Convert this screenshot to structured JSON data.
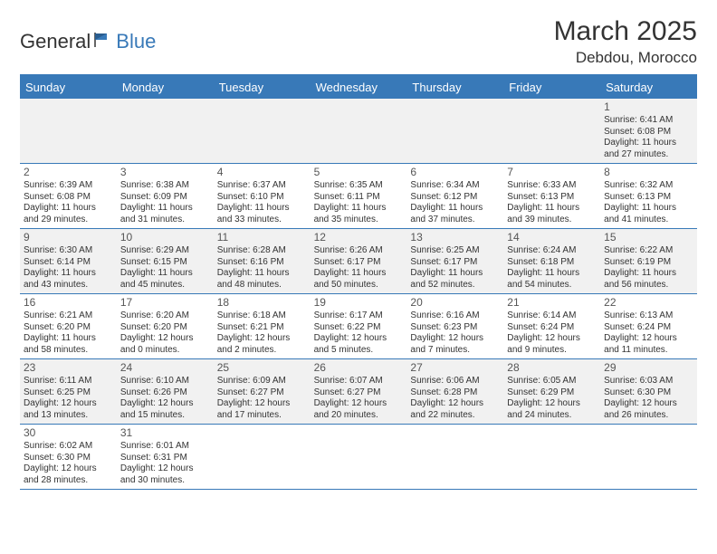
{
  "brand": {
    "part1": "General",
    "part2": "Blue"
  },
  "title": {
    "month_year": "March 2025",
    "location": "Debdou, Morocco"
  },
  "colors": {
    "accent": "#3879b8",
    "header_text": "#ffffff",
    "body_text": "#333333",
    "stripe_bg": "#f1f1f1",
    "background": "#ffffff"
  },
  "weekdays": [
    "Sunday",
    "Monday",
    "Tuesday",
    "Wednesday",
    "Thursday",
    "Friday",
    "Saturday"
  ],
  "weeks": [
    [
      null,
      null,
      null,
      null,
      null,
      null,
      {
        "n": "1",
        "sr": "Sunrise: 6:41 AM",
        "ss": "Sunset: 6:08 PM",
        "d1": "Daylight: 11 hours",
        "d2": "and 27 minutes."
      }
    ],
    [
      {
        "n": "2",
        "sr": "Sunrise: 6:39 AM",
        "ss": "Sunset: 6:08 PM",
        "d1": "Daylight: 11 hours",
        "d2": "and 29 minutes."
      },
      {
        "n": "3",
        "sr": "Sunrise: 6:38 AM",
        "ss": "Sunset: 6:09 PM",
        "d1": "Daylight: 11 hours",
        "d2": "and 31 minutes."
      },
      {
        "n": "4",
        "sr": "Sunrise: 6:37 AM",
        "ss": "Sunset: 6:10 PM",
        "d1": "Daylight: 11 hours",
        "d2": "and 33 minutes."
      },
      {
        "n": "5",
        "sr": "Sunrise: 6:35 AM",
        "ss": "Sunset: 6:11 PM",
        "d1": "Daylight: 11 hours",
        "d2": "and 35 minutes."
      },
      {
        "n": "6",
        "sr": "Sunrise: 6:34 AM",
        "ss": "Sunset: 6:12 PM",
        "d1": "Daylight: 11 hours",
        "d2": "and 37 minutes."
      },
      {
        "n": "7",
        "sr": "Sunrise: 6:33 AM",
        "ss": "Sunset: 6:13 PM",
        "d1": "Daylight: 11 hours",
        "d2": "and 39 minutes."
      },
      {
        "n": "8",
        "sr": "Sunrise: 6:32 AM",
        "ss": "Sunset: 6:13 PM",
        "d1": "Daylight: 11 hours",
        "d2": "and 41 minutes."
      }
    ],
    [
      {
        "n": "9",
        "sr": "Sunrise: 6:30 AM",
        "ss": "Sunset: 6:14 PM",
        "d1": "Daylight: 11 hours",
        "d2": "and 43 minutes."
      },
      {
        "n": "10",
        "sr": "Sunrise: 6:29 AM",
        "ss": "Sunset: 6:15 PM",
        "d1": "Daylight: 11 hours",
        "d2": "and 45 minutes."
      },
      {
        "n": "11",
        "sr": "Sunrise: 6:28 AM",
        "ss": "Sunset: 6:16 PM",
        "d1": "Daylight: 11 hours",
        "d2": "and 48 minutes."
      },
      {
        "n": "12",
        "sr": "Sunrise: 6:26 AM",
        "ss": "Sunset: 6:17 PM",
        "d1": "Daylight: 11 hours",
        "d2": "and 50 minutes."
      },
      {
        "n": "13",
        "sr": "Sunrise: 6:25 AM",
        "ss": "Sunset: 6:17 PM",
        "d1": "Daylight: 11 hours",
        "d2": "and 52 minutes."
      },
      {
        "n": "14",
        "sr": "Sunrise: 6:24 AM",
        "ss": "Sunset: 6:18 PM",
        "d1": "Daylight: 11 hours",
        "d2": "and 54 minutes."
      },
      {
        "n": "15",
        "sr": "Sunrise: 6:22 AM",
        "ss": "Sunset: 6:19 PM",
        "d1": "Daylight: 11 hours",
        "d2": "and 56 minutes."
      }
    ],
    [
      {
        "n": "16",
        "sr": "Sunrise: 6:21 AM",
        "ss": "Sunset: 6:20 PM",
        "d1": "Daylight: 11 hours",
        "d2": "and 58 minutes."
      },
      {
        "n": "17",
        "sr": "Sunrise: 6:20 AM",
        "ss": "Sunset: 6:20 PM",
        "d1": "Daylight: 12 hours",
        "d2": "and 0 minutes."
      },
      {
        "n": "18",
        "sr": "Sunrise: 6:18 AM",
        "ss": "Sunset: 6:21 PM",
        "d1": "Daylight: 12 hours",
        "d2": "and 2 minutes."
      },
      {
        "n": "19",
        "sr": "Sunrise: 6:17 AM",
        "ss": "Sunset: 6:22 PM",
        "d1": "Daylight: 12 hours",
        "d2": "and 5 minutes."
      },
      {
        "n": "20",
        "sr": "Sunrise: 6:16 AM",
        "ss": "Sunset: 6:23 PM",
        "d1": "Daylight: 12 hours",
        "d2": "and 7 minutes."
      },
      {
        "n": "21",
        "sr": "Sunrise: 6:14 AM",
        "ss": "Sunset: 6:24 PM",
        "d1": "Daylight: 12 hours",
        "d2": "and 9 minutes."
      },
      {
        "n": "22",
        "sr": "Sunrise: 6:13 AM",
        "ss": "Sunset: 6:24 PM",
        "d1": "Daylight: 12 hours",
        "d2": "and 11 minutes."
      }
    ],
    [
      {
        "n": "23",
        "sr": "Sunrise: 6:11 AM",
        "ss": "Sunset: 6:25 PM",
        "d1": "Daylight: 12 hours",
        "d2": "and 13 minutes."
      },
      {
        "n": "24",
        "sr": "Sunrise: 6:10 AM",
        "ss": "Sunset: 6:26 PM",
        "d1": "Daylight: 12 hours",
        "d2": "and 15 minutes."
      },
      {
        "n": "25",
        "sr": "Sunrise: 6:09 AM",
        "ss": "Sunset: 6:27 PM",
        "d1": "Daylight: 12 hours",
        "d2": "and 17 minutes."
      },
      {
        "n": "26",
        "sr": "Sunrise: 6:07 AM",
        "ss": "Sunset: 6:27 PM",
        "d1": "Daylight: 12 hours",
        "d2": "and 20 minutes."
      },
      {
        "n": "27",
        "sr": "Sunrise: 6:06 AM",
        "ss": "Sunset: 6:28 PM",
        "d1": "Daylight: 12 hours",
        "d2": "and 22 minutes."
      },
      {
        "n": "28",
        "sr": "Sunrise: 6:05 AM",
        "ss": "Sunset: 6:29 PM",
        "d1": "Daylight: 12 hours",
        "d2": "and 24 minutes."
      },
      {
        "n": "29",
        "sr": "Sunrise: 6:03 AM",
        "ss": "Sunset: 6:30 PM",
        "d1": "Daylight: 12 hours",
        "d2": "and 26 minutes."
      }
    ],
    [
      {
        "n": "30",
        "sr": "Sunrise: 6:02 AM",
        "ss": "Sunset: 6:30 PM",
        "d1": "Daylight: 12 hours",
        "d2": "and 28 minutes."
      },
      {
        "n": "31",
        "sr": "Sunrise: 6:01 AM",
        "ss": "Sunset: 6:31 PM",
        "d1": "Daylight: 12 hours",
        "d2": "and 30 minutes."
      },
      null,
      null,
      null,
      null,
      null
    ]
  ]
}
